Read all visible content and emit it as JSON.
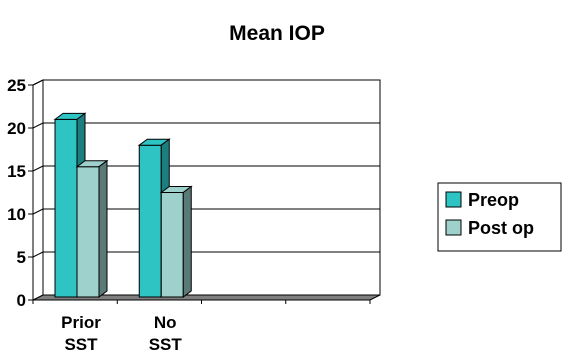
{
  "chart_data": {
    "type": "bar",
    "title": "Mean IOP",
    "categories": [
      [
        "Prior",
        "SST"
      ],
      [
        "No",
        "SST"
      ],
      [
        "",
        ""
      ],
      [
        "",
        ""
      ]
    ],
    "series": [
      {
        "name": "Preop",
        "values": [
          21,
          18,
          null,
          null
        ]
      },
      {
        "name": "Post op",
        "values": [
          15.5,
          12.5,
          null,
          null
        ]
      }
    ],
    "ylim": [
      0,
      25
    ],
    "yticks": [
      0,
      5,
      10,
      15,
      20,
      25
    ],
    "grid": true,
    "legend": "right",
    "colors": {
      "Preop": "#2ec4c4",
      "Post op": "#9ed0cc",
      "Preop_side": "#1b7f7f",
      "Post op_side": "#5a7a78",
      "floor": "#7f7f7f",
      "wall": "#ffffff"
    }
  }
}
